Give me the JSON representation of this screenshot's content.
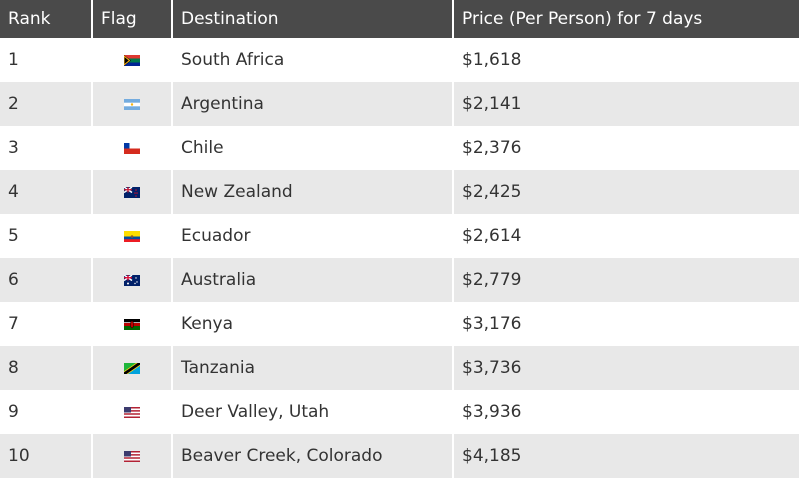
{
  "table": {
    "header": [
      "Rank",
      "Flag",
      "Destination",
      "Price (Per Person) for 7 days"
    ],
    "rows": [
      [
        "1",
        "South Africa",
        "$1,618"
      ],
      [
        "2",
        "Argentina",
        "$2,141"
      ],
      [
        "3",
        "Chile",
        "$2,376"
      ],
      [
        "4",
        "New Zealand",
        "$2,425"
      ],
      [
        "5",
        "Ecuador",
        "$2,614"
      ],
      [
        "6",
        "Australia",
        "$2,779"
      ],
      [
        "7",
        "Kenya",
        "$3,176"
      ],
      [
        "8",
        "Tanzania",
        "$3,736"
      ],
      [
        "9",
        "Deer Valley, Utah",
        "$3,936"
      ],
      [
        "10",
        "Beaver Creek, Colorado",
        "$4,185"
      ]
    ]
  }
}
